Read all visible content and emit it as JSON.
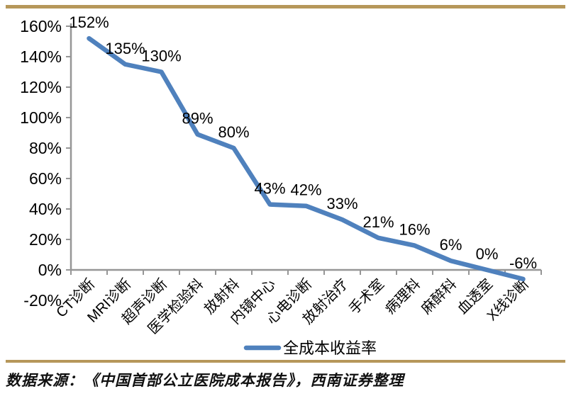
{
  "chart_data": {
    "type": "line",
    "categories": [
      "CT诊断",
      "MRI诊断",
      "超声诊断",
      "医学检验科",
      "放射科",
      "内镜中心",
      "心电诊断",
      "放射治疗",
      "手术室",
      "病理科",
      "麻醉科",
      "血透室",
      "X线诊断"
    ],
    "series": [
      {
        "name": "全成本收益率",
        "values": [
          152,
          135,
          130,
          89,
          80,
          43,
          42,
          33,
          21,
          16,
          6,
          0,
          -6
        ]
      }
    ],
    "data_labels": [
      "152%",
      "135%",
      "130%",
      "89%",
      "80%",
      "43%",
      "42%",
      "33%",
      "21%",
      "16%",
      "6%",
      "0%",
      "-6%"
    ],
    "y_axis": {
      "min": -20,
      "max": 160,
      "step": 20,
      "tick_labels": [
        "160%",
        "140%",
        "120%",
        "100%",
        "80%",
        "60%",
        "40%",
        "20%",
        "0%",
        "-20%"
      ]
    },
    "legend": {
      "label": "全成本收益率",
      "position": "bottom"
    },
    "grid": false,
    "colors": {
      "line": "#4F81BD",
      "axis": "#969696",
      "text": "#000000"
    }
  },
  "footer": {
    "source_text": "数据来源：《中国首部公立医院成本报告》，西南证券整理"
  },
  "decor": {
    "border_color": "#B6975A"
  }
}
